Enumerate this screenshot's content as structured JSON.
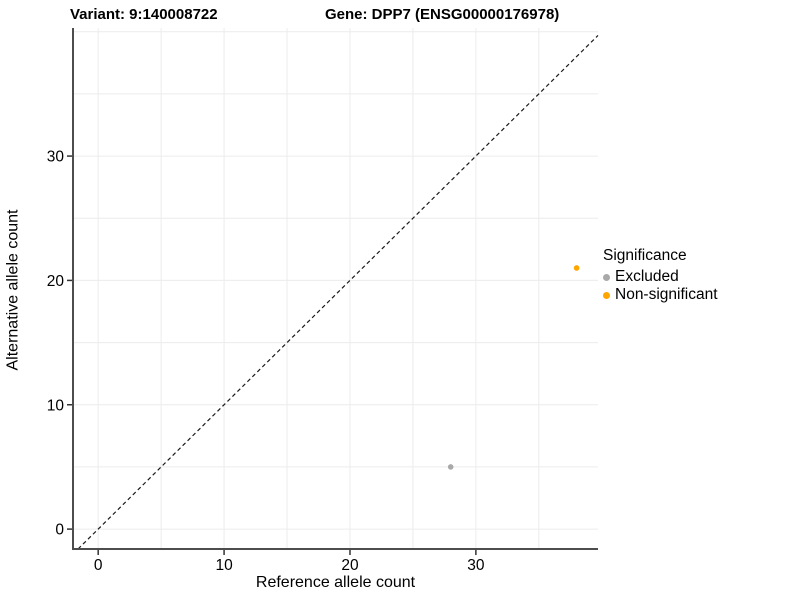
{
  "chart_data": {
    "type": "scatter",
    "titles": {
      "left": "Variant: 9:140008722",
      "right": "Gene: DPP7 (ENSG00000176978)"
    },
    "xlabel": "Reference allele count",
    "ylabel": "Alternative allele count",
    "xlim": [
      -2.0,
      39.7
    ],
    "ylim": [
      -1.6,
      40.3
    ],
    "xticks": [
      0,
      10,
      20,
      30
    ],
    "yticks": [
      0,
      10,
      20,
      30
    ],
    "grid": {
      "show": true,
      "step": 5,
      "color": "#ececec"
    },
    "identity_line": {
      "type": "y=x",
      "dashed": true,
      "color": "#1a1a1a"
    },
    "axis_color": "#4d4d4d",
    "tick_color": "#333333",
    "legend": {
      "title": "Significance",
      "position": "right"
    },
    "series": [
      {
        "name": "Excluded",
        "color": "#A9A9A9",
        "points": [
          [
            28,
            5
          ]
        ]
      },
      {
        "name": "Non-significant",
        "color": "#FFA500",
        "points": [
          [
            38,
            21
          ]
        ]
      }
    ]
  }
}
